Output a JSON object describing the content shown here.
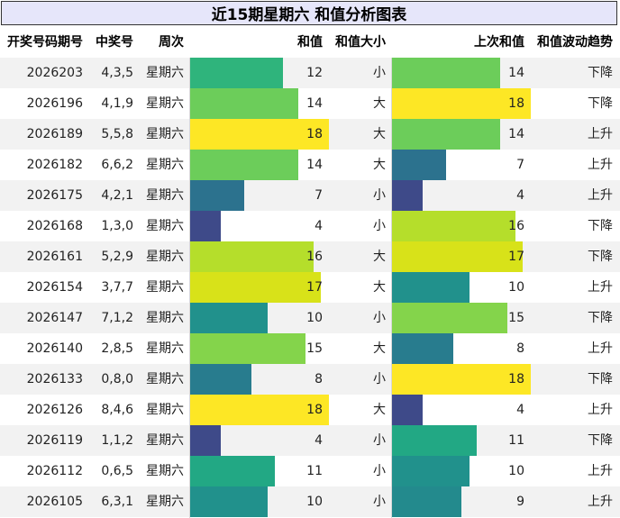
{
  "title": "近15期星期六 和值分析图表",
  "headers": {
    "issue": "开奖号码期号",
    "numbers": "中奖号",
    "weekday": "周次",
    "sum": "和值",
    "size": "和值大小",
    "prev_sum": "上次和值",
    "trend": "和值波动趋势"
  },
  "chart_data": {
    "type": "table",
    "title": "近15期星期六 和值分析图表",
    "bar_scale_max": 18,
    "columns": [
      "开奖号码期号",
      "中奖号",
      "周次",
      "和值",
      "和值大小",
      "上次和值",
      "和值波动趋势"
    ],
    "rows": [
      {
        "issue": "2026203",
        "numbers": "4,3,5",
        "weekday": "星期六",
        "sum": 12,
        "size": "小",
        "prev_sum": 14,
        "trend": "下降"
      },
      {
        "issue": "2026196",
        "numbers": "4,1,9",
        "weekday": "星期六",
        "sum": 14,
        "size": "大",
        "prev_sum": 18,
        "trend": "下降"
      },
      {
        "issue": "2026189",
        "numbers": "5,5,8",
        "weekday": "星期六",
        "sum": 18,
        "size": "大",
        "prev_sum": 14,
        "trend": "上升"
      },
      {
        "issue": "2026182",
        "numbers": "6,6,2",
        "weekday": "星期六",
        "sum": 14,
        "size": "大",
        "prev_sum": 7,
        "trend": "上升"
      },
      {
        "issue": "2026175",
        "numbers": "4,2,1",
        "weekday": "星期六",
        "sum": 7,
        "size": "小",
        "prev_sum": 4,
        "trend": "上升"
      },
      {
        "issue": "2026168",
        "numbers": "1,3,0",
        "weekday": "星期六",
        "sum": 4,
        "size": "小",
        "prev_sum": 16,
        "trend": "下降"
      },
      {
        "issue": "2026161",
        "numbers": "5,2,9",
        "weekday": "星期六",
        "sum": 16,
        "size": "大",
        "prev_sum": 17,
        "trend": "下降"
      },
      {
        "issue": "2026154",
        "numbers": "3,7,7",
        "weekday": "星期六",
        "sum": 17,
        "size": "大",
        "prev_sum": 10,
        "trend": "上升"
      },
      {
        "issue": "2026147",
        "numbers": "7,1,2",
        "weekday": "星期六",
        "sum": 10,
        "size": "小",
        "prev_sum": 15,
        "trend": "下降"
      },
      {
        "issue": "2026140",
        "numbers": "2,8,5",
        "weekday": "星期六",
        "sum": 15,
        "size": "大",
        "prev_sum": 8,
        "trend": "上升"
      },
      {
        "issue": "2026133",
        "numbers": "0,8,0",
        "weekday": "星期六",
        "sum": 8,
        "size": "小",
        "prev_sum": 18,
        "trend": "下降"
      },
      {
        "issue": "2026126",
        "numbers": "8,4,6",
        "weekday": "星期六",
        "sum": 18,
        "size": "大",
        "prev_sum": 4,
        "trend": "上升"
      },
      {
        "issue": "2026119",
        "numbers": "1,1,2",
        "weekday": "星期六",
        "sum": 4,
        "size": "小",
        "prev_sum": 11,
        "trend": "下降"
      },
      {
        "issue": "2026112",
        "numbers": "0,6,5",
        "weekday": "星期六",
        "sum": 11,
        "size": "小",
        "prev_sum": 10,
        "trend": "上升"
      },
      {
        "issue": "2026105",
        "numbers": "6,3,1",
        "weekday": "星期六",
        "sum": 10,
        "size": "小",
        "prev_sum": 9,
        "trend": "上升"
      }
    ]
  },
  "colors": {
    "4": "#3e4a89",
    "7": "#2c728e",
    "8": "#287c8e",
    "9": "#238a8d",
    "10": "#21918c",
    "11": "#22a884",
    "12": "#2fb47c",
    "14": "#6ccd5a",
    "15": "#84d44b",
    "16": "#b5de2b",
    "17": "#d8e219",
    "18": "#fde725"
  }
}
